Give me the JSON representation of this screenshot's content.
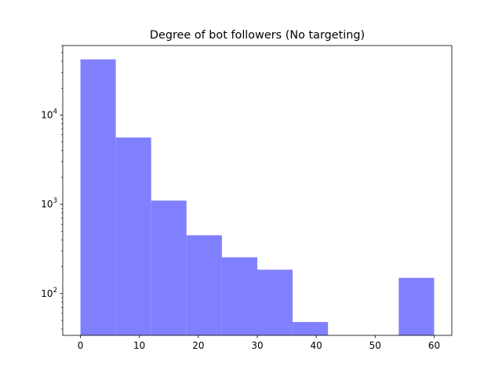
{
  "chart_data": {
    "type": "bar",
    "title": "Degree of bot followers (No targeting)",
    "xlabel": "",
    "ylabel": "",
    "y_scale": "log",
    "xlim": [
      -3,
      63
    ],
    "ylim": [
      34,
      60000
    ],
    "bar_color": "#8080ff",
    "bins": [
      {
        "x0": 0,
        "x1": 6,
        "value": 42000
      },
      {
        "x0": 6,
        "x1": 12,
        "value": 5600
      },
      {
        "x0": 12,
        "x1": 18,
        "value": 1100
      },
      {
        "x0": 18,
        "x1": 24,
        "value": 450
      },
      {
        "x0": 24,
        "x1": 30,
        "value": 255
      },
      {
        "x0": 30,
        "x1": 36,
        "value": 185
      },
      {
        "x0": 36,
        "x1": 42,
        "value": 48
      },
      {
        "x0": 42,
        "x1": 48,
        "value": 0
      },
      {
        "x0": 48,
        "x1": 54,
        "value": 0
      },
      {
        "x0": 54,
        "x1": 60,
        "value": 150
      }
    ],
    "x_ticks": [
      0,
      10,
      20,
      30,
      40,
      50,
      60
    ],
    "y_major_ticks": [
      {
        "value": 100,
        "base": "10",
        "exp": "2"
      },
      {
        "value": 1000,
        "base": "10",
        "exp": "3"
      },
      {
        "value": 10000,
        "base": "10",
        "exp": "4"
      }
    ],
    "grid": false,
    "legend": "none"
  }
}
